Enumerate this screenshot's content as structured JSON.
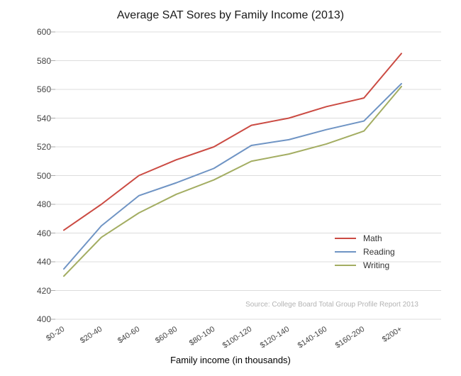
{
  "chart_data": {
    "type": "line",
    "title": "Average SAT Sores by Family Income (2013)",
    "xlabel": "Family income (in thousands)",
    "ylabel": "",
    "source": "Source: College Board Total Group Profile Report 2013",
    "categories": [
      "$0-20",
      "$20-40",
      "$40-60",
      "$60-80",
      "$80-100",
      "$100-120",
      "$120-140",
      "$140-160",
      "$160-200",
      "$200+"
    ],
    "series": [
      {
        "name": "Math",
        "color": "#cb4b43",
        "values": [
          462,
          480,
          500,
          511,
          520,
          535,
          540,
          548,
          554,
          585
        ]
      },
      {
        "name": "Reading",
        "color": "#6f94c4",
        "values": [
          435,
          465,
          486,
          495,
          505,
          521,
          525,
          532,
          538,
          564
        ]
      },
      {
        "name": "Writing",
        "color": "#a3ad62",
        "values": [
          430,
          457,
          474,
          487,
          497,
          510,
          515,
          522,
          531,
          562
        ]
      }
    ],
    "ylim": [
      400,
      600
    ],
    "ytick_step": 20,
    "grid": "horizontal",
    "legend_position": "right-middle",
    "colors": {
      "gridline": "#dcdcdc",
      "tick": "#aaaaaa",
      "tick_label": "#444444",
      "source_text": "#b3b3b3"
    }
  }
}
